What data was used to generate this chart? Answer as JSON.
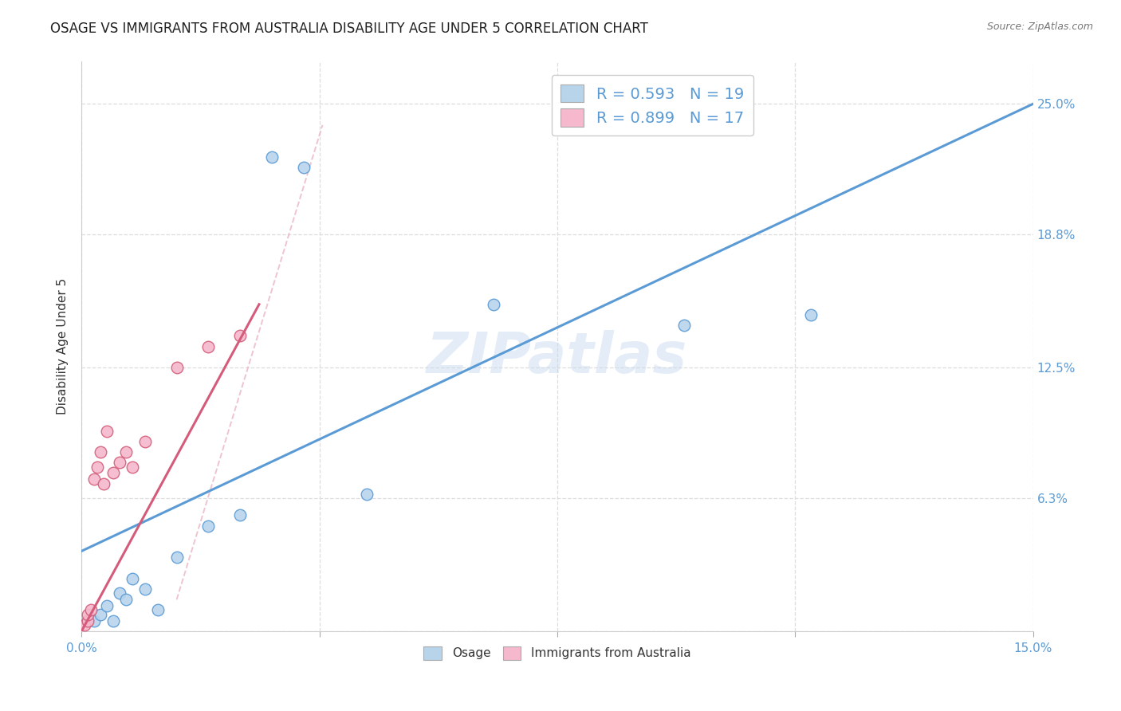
{
  "title": "OSAGE VS IMMIGRANTS FROM AUSTRALIA DISABILITY AGE UNDER 5 CORRELATION CHART",
  "source": "Source: ZipAtlas.com",
  "ylabel": "Disability Age Under 5",
  "x_min": 0.0,
  "x_max": 15.0,
  "y_min": 0.0,
  "y_max": 27.0,
  "watermark": "ZIPatlas",
  "legend_r1": "R = 0.593",
  "legend_n1": "N = 19",
  "legend_r2": "R = 0.899",
  "legend_n2": "N = 17",
  "osage_color": "#b8d4eb",
  "australia_color": "#f5b8cc",
  "osage_line_color": "#5b9bd5",
  "australia_line_color": "#d45c7a",
  "osage_scatter_x": [
    0.1,
    0.2,
    0.3,
    0.4,
    0.5,
    0.6,
    0.7,
    0.8,
    1.0,
    1.2,
    1.5,
    2.0,
    2.5,
    3.0,
    3.5,
    4.5,
    6.5,
    9.5,
    11.5
  ],
  "osage_scatter_y": [
    0.5,
    0.5,
    0.8,
    1.2,
    0.5,
    1.8,
    1.5,
    2.5,
    2.0,
    1.0,
    3.5,
    5.0,
    5.5,
    22.5,
    22.0,
    6.5,
    15.5,
    14.5,
    15.0
  ],
  "australia_scatter_x": [
    0.05,
    0.1,
    0.1,
    0.15,
    0.2,
    0.25,
    0.3,
    0.35,
    0.4,
    0.5,
    0.6,
    0.7,
    0.8,
    1.0,
    1.5,
    2.0,
    2.5
  ],
  "australia_scatter_y": [
    0.3,
    0.5,
    0.8,
    1.0,
    7.2,
    7.8,
    8.5,
    7.0,
    9.5,
    7.5,
    8.0,
    8.5,
    7.8,
    9.0,
    12.5,
    13.5,
    14.0
  ],
  "osage_line_x0": 0.0,
  "osage_line_y0": 3.8,
  "osage_line_x1": 15.0,
  "osage_line_y1": 25.0,
  "australia_line_x0": 0.0,
  "australia_line_y0": 0.0,
  "australia_line_x1": 2.8,
  "australia_line_y1": 15.5,
  "dash_line_x0": 1.5,
  "dash_line_y0": 1.5,
  "dash_line_x1": 3.8,
  "dash_line_y1": 24.0,
  "background_color": "#ffffff",
  "grid_color": "#dddddd",
  "title_fontsize": 12,
  "axis_label_fontsize": 11,
  "tick_fontsize": 11,
  "watermark_fontsize": 52,
  "watermark_color": "#c5d8ee",
  "watermark_alpha": 0.45,
  "legend_text_color": "#4a4a4a",
  "r_n_color": "#5b9bd5"
}
